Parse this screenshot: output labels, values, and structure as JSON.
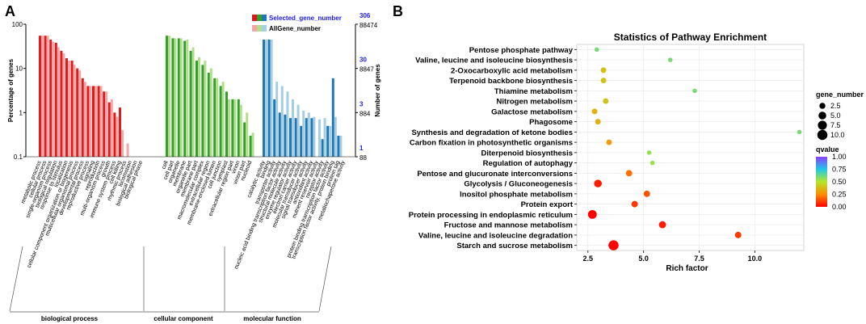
{
  "panel_a": {
    "label": "A",
    "y_left_label": "Percentage of genes",
    "y_right_label": "Number of genes",
    "legend": {
      "selected": "Selected_gene_number",
      "all": "AllGene_number",
      "selected_colors": [
        "#d7191c",
        "#33a02c",
        "#1f78b4"
      ],
      "all_colors": [
        "#f4a6a6",
        "#b2df8a",
        "#a6cee3"
      ]
    },
    "left_ticks": [
      "100",
      "10",
      "1",
      "0.1"
    ],
    "right_ticks": [
      {
        "top": "306",
        "bottom": "88474"
      },
      {
        "top": "30",
        "bottom": "8847"
      },
      {
        "top": "3",
        "bottom": "884"
      },
      {
        "top": "1",
        "bottom": "88"
      }
    ],
    "groups": [
      "biological process",
      "cellular component",
      "molecular function"
    ],
    "colors": {
      "bp_sel": "#e31a1c",
      "bp_all": "#f4a6a6",
      "cc_sel": "#33a02c",
      "cc_all": "#b2df8a",
      "mf_sel": "#1f78b4",
      "mf_all": "#a6cee3",
      "right_blue": "#1a1aff"
    }
  },
  "panel_b": {
    "label": "B",
    "legend": {
      "size_title": "gene_number",
      "size_labels": [
        "2.5",
        "5.0",
        "7.5",
        "10.0"
      ],
      "color_title": "qvalue",
      "color_labels": [
        "1.00",
        "0.75",
        "0.50",
        "0.25",
        "0.00"
      ]
    }
  },
  "chart_data": [
    {
      "type": "bar",
      "title": "",
      "ylabel": "Percentage of genes",
      "ylabel_right": "Number of genes",
      "yscale": "log",
      "ylim": [
        0.1,
        100
      ],
      "categories": [
        "metabolic process",
        "cellular process",
        "single-organism process",
        "biological regulation",
        "response to stimulus",
        "localization",
        "cellular component organization or biogenesis",
        "multicellular organismal process",
        "developmental process",
        "reproductive process",
        "signaling",
        "reproduction",
        "multi-organism process",
        "growth",
        "immune system process",
        "cell killing",
        "rhythmic process",
        "locomotion",
        "biological adhesion",
        "biological phase",
        "cell",
        "cell part",
        "organelle",
        "membrane",
        "organelle part",
        "membrane part",
        "macromolecular complex",
        "extracellular region",
        "membrane-enclosed lumen",
        "cell junction",
        "symplast",
        "extracellular region part",
        "virion",
        "virion part",
        "nucleoid",
        "catalytic activity",
        "binding",
        "transporter activity",
        "nucleic acid binding transcription factor activity",
        "structural molecule activity",
        "enzyme regulator activity",
        "electron carrier activity",
        "molecular transducer activity",
        "signal transducer activity",
        "antioxidant activity",
        "nutrient reservoir activity",
        "receptor activity",
        "protein binding transcription factor activity",
        "transcription factor activity, protein binding",
        "protein tag",
        "metallochaperone activity"
      ],
      "category_groups": [
        "biological process",
        "biological process",
        "biological process",
        "biological process",
        "biological process",
        "biological process",
        "biological process",
        "biological process",
        "biological process",
        "biological process",
        "biological process",
        "biological process",
        "biological process",
        "biological process",
        "biological process",
        "biological process",
        "biological process",
        "biological process",
        "biological process",
        "biological process",
        "cellular component",
        "cellular component",
        "cellular component",
        "cellular component",
        "cellular component",
        "cellular component",
        "cellular component",
        "cellular component",
        "cellular component",
        "cellular component",
        "cellular component",
        "cellular component",
        "cellular component",
        "cellular component",
        "cellular component",
        "molecular function",
        "molecular function",
        "molecular function",
        "molecular function",
        "molecular function",
        "molecular function",
        "molecular function",
        "molecular function",
        "molecular function",
        "molecular function",
        "molecular function",
        "molecular function",
        "molecular function",
        "molecular function",
        "molecular function",
        "molecular function"
      ],
      "series": [
        {
          "name": "Selected_gene_number",
          "values": [
            55,
            55,
            45,
            38,
            25,
            17,
            15,
            10,
            6,
            4,
            4,
            4,
            3,
            1.7,
            1,
            1.3,
            0.1,
            0.1,
            0.1,
            0.1,
            55,
            48,
            48,
            42,
            25,
            15,
            12,
            8,
            6,
            4,
            3,
            2,
            2,
            0.6,
            0.3,
            45,
            45,
            2,
            1,
            0.9,
            0.75,
            0.75,
            0.5,
            0.75,
            0.75,
            0.1,
            0.25,
            0.5,
            6,
            0.3,
            0.1
          ]
        },
        {
          "name": "AllGene_number",
          "values": [
            55,
            55,
            40,
            30,
            22,
            15,
            12,
            9,
            5,
            4,
            4,
            4,
            3,
            2,
            0.8,
            0.4,
            0.2,
            0.1,
            0.1,
            0.1,
            55,
            48,
            48,
            45,
            30,
            18,
            15,
            10,
            6,
            5,
            2,
            2,
            1.5,
            1,
            0.35,
            45,
            45,
            5,
            4,
            3,
            2,
            1.5,
            1.1,
            1,
            0.8,
            0.7,
            0.75,
            0.5,
            0.8,
            0.3,
            0.1
          ]
        }
      ]
    },
    {
      "type": "scatter",
      "title": "Statistics of Pathway Enrichment",
      "xlabel": "Rich factor",
      "ylabel": "",
      "xlim": [
        2.0,
        12.2
      ],
      "xticks": [
        2.5,
        5.0,
        7.5,
        10.0
      ],
      "size_variable": "gene_number",
      "color_variable": "qvalue",
      "categories": [
        "Pentose phosphate pathway",
        "Valine, leucine and isoleucine biosynthesis",
        "2-Oxocarboxylic acid metabolism",
        "Terpenoid backbone biosynthesis",
        "Thiamine metabolism",
        "Nitrogen metabolism",
        "Galactose metabolism",
        "Phagosome",
        "Synthesis and degradation of ketone bodies",
        "Carbon fixation in photosynthetic organisms",
        "Diterpenoid biosynthesis",
        "Regulation of autophagy",
        "Pentose and glucuronate interconversions",
        "Glycolysis / Gluconeogenesis",
        "Inositol phosphate metabolism",
        "Protein export",
        "Protein processing in endoplasmic reticulum",
        "Fructose and mannose metabolism",
        "Valine, leucine and isoleucine degradation",
        "Starch and sucrose metabolism"
      ],
      "points": [
        {
          "pathway": "Pentose phosphate pathway",
          "rich_factor": 2.9,
          "gene_number": 1,
          "qvalue": 0.6
        },
        {
          "pathway": "Valine, leucine and isoleucine biosynthesis",
          "rich_factor": 6.2,
          "gene_number": 1,
          "qvalue": 0.6
        },
        {
          "pathway": "2-Oxocarboxylic acid metabolism",
          "rich_factor": 3.2,
          "gene_number": 2,
          "qvalue": 0.4
        },
        {
          "pathway": "Terpenoid backbone biosynthesis",
          "rich_factor": 3.2,
          "gene_number": 2,
          "qvalue": 0.4
        },
        {
          "pathway": "Thiamine metabolism",
          "rich_factor": 7.3,
          "gene_number": 1,
          "qvalue": 0.6
        },
        {
          "pathway": "Nitrogen metabolism",
          "rich_factor": 3.3,
          "gene_number": 2,
          "qvalue": 0.4
        },
        {
          "pathway": "Galactose metabolism",
          "rich_factor": 2.8,
          "gene_number": 2,
          "qvalue": 0.35
        },
        {
          "pathway": "Phagosome",
          "rich_factor": 2.95,
          "gene_number": 2,
          "qvalue": 0.35
        },
        {
          "pathway": "Synthesis and degradation of ketone bodies",
          "rich_factor": 12.0,
          "gene_number": 1,
          "qvalue": 0.6
        },
        {
          "pathway": "Carbon fixation in photosynthetic organisms",
          "rich_factor": 3.45,
          "gene_number": 2,
          "qvalue": 0.3
        },
        {
          "pathway": "Diterpenoid biosynthesis",
          "rich_factor": 5.25,
          "gene_number": 1,
          "qvalue": 0.55
        },
        {
          "pathway": "Regulation of autophagy",
          "rich_factor": 5.4,
          "gene_number": 1,
          "qvalue": 0.55
        },
        {
          "pathway": "Pentose and glucuronate interconversions",
          "rich_factor": 4.35,
          "gene_number": 3,
          "qvalue": 0.2
        },
        {
          "pathway": "Glycolysis / Gluconeogenesis",
          "rich_factor": 2.95,
          "gene_number": 5,
          "qvalue": 0.05
        },
        {
          "pathway": "Inositol phosphate metabolism",
          "rich_factor": 5.15,
          "gene_number": 3,
          "qvalue": 0.15
        },
        {
          "pathway": "Protein export",
          "rich_factor": 4.6,
          "gene_number": 3,
          "qvalue": 0.1
        },
        {
          "pathway": "Protein processing in endoplasmic reticulum",
          "rich_factor": 2.7,
          "gene_number": 7,
          "qvalue": 0.0
        },
        {
          "pathway": "Fructose and mannose metabolism",
          "rich_factor": 5.85,
          "gene_number": 4,
          "qvalue": 0.05
        },
        {
          "pathway": "Valine, leucine and isoleucine degradation",
          "rich_factor": 9.25,
          "gene_number": 3,
          "qvalue": 0.1
        },
        {
          "pathway": "Starch and sucrose metabolism",
          "rich_factor": 3.65,
          "gene_number": 10,
          "qvalue": 0.0
        }
      ]
    }
  ]
}
